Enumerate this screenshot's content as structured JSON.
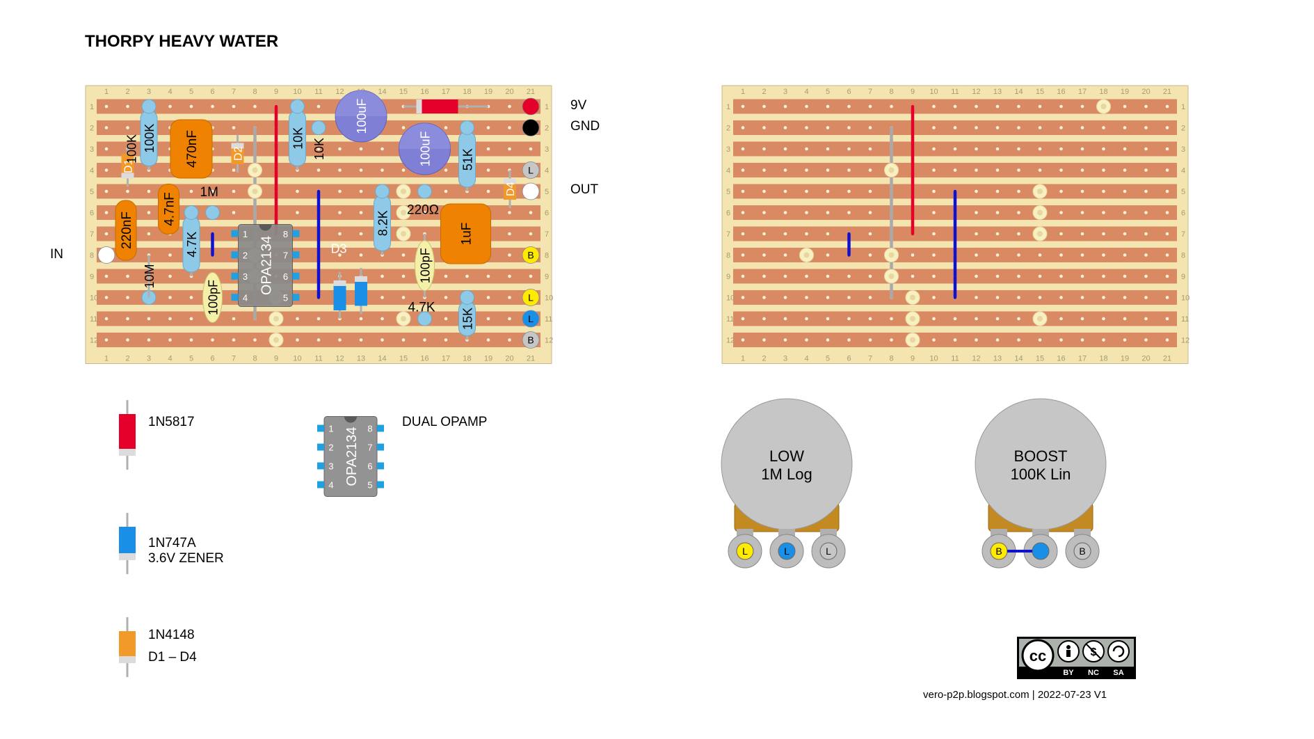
{
  "title": "THORPY HEAVY WATER",
  "colors": {
    "board": "#f4e4b0",
    "strip": "#d98a63",
    "hole": "#f8f3d8",
    "resistor": "#8ec9e8",
    "film_cap": "#ef8200",
    "electrolytic": "#7f7fd6",
    "ceramic": "#f4f0a8",
    "link_red": "#e4002b",
    "link_blue": "#1010d0",
    "link_grey": "#a9a9a9",
    "schottky": "#e4002b",
    "zener": "#1a8fe8",
    "signal_diode": "#f19a2a",
    "opamp": "#8a8a8a",
    "pot_body": "#c6c6c6",
    "pot_base": "#c38a22",
    "lug_yellow": "#ffeb00",
    "lug_blue": "#1a8fe8",
    "lug_grey": "#c6c6c6",
    "cut_marker": "#f8f0c0"
  },
  "board_left": {
    "columns": [
      "1",
      "2",
      "3",
      "4",
      "5",
      "6",
      "7",
      "8",
      "9",
      "10",
      "11",
      "12",
      "13",
      "14",
      "15",
      "16",
      "17",
      "18",
      "19",
      "20",
      "21"
    ],
    "rows": [
      "1",
      "2",
      "3",
      "4",
      "5",
      "6",
      "7",
      "8",
      "9",
      "10",
      "11",
      "12"
    ],
    "wires": [
      {
        "name": "9V",
        "color": "red"
      },
      {
        "name": "GND",
        "color": "black"
      },
      {
        "name": "OUT",
        "color": "white"
      },
      {
        "name": "IN",
        "color": "white"
      }
    ],
    "resistors": [
      "100K",
      "100K",
      "10K",
      "10K",
      "51K",
      "1M",
      "4.7K",
      "10M",
      "8.2K",
      "220Ω",
      "4.7K",
      "15K"
    ],
    "capacitors": [
      "470nF",
      "4.7nF",
      "220nF",
      "100uF",
      "100uF",
      "1uF",
      "100pF",
      "100pF"
    ],
    "diodes": [
      "D1",
      "D2",
      "D3",
      "D4"
    ],
    "ic_label": "OPA2134",
    "ic_pins_left": [
      "1",
      "2",
      "3",
      "4"
    ],
    "ic_pins_right": [
      "8",
      "7",
      "6",
      "5"
    ],
    "pot_lugs": [
      "L",
      "B",
      "L",
      "L",
      "B"
    ]
  },
  "board_right": {
    "columns": [
      "1",
      "2",
      "3",
      "4",
      "5",
      "6",
      "7",
      "8",
      "9",
      "10",
      "11",
      "12",
      "13",
      "14",
      "15",
      "16",
      "17",
      "18",
      "19",
      "20",
      "21"
    ],
    "rows": [
      "1",
      "2",
      "3",
      "4",
      "5",
      "6",
      "7",
      "8",
      "9",
      "10",
      "11",
      "12"
    ]
  },
  "offboard_labels": {
    "v9": "9V",
    "gnd": "GND",
    "out": "OUT",
    "in": "IN"
  },
  "legend": {
    "schottky_name": "1N5817",
    "zener_name": "1N747A",
    "zener_desc": "3.6V ZENER",
    "signal_name": "1N4148",
    "signal_desc": "D1 – D4",
    "opamp_name": "OPA2134",
    "opamp_desc": "DUAL OPAMP",
    "opamp_pins_left": [
      "1",
      "2",
      "3",
      "4"
    ],
    "opamp_pins_right": [
      "8",
      "7",
      "6",
      "5"
    ]
  },
  "pots": [
    {
      "name_line1": "LOW",
      "name_line2": "1M Log",
      "lugs": [
        "L",
        "L",
        "L"
      ],
      "lug_colors": [
        "yellow",
        "blue",
        "grey"
      ]
    },
    {
      "name_line1": "BOOST",
      "name_line2": "100K Lin",
      "lugs": [
        "B",
        "",
        "B"
      ],
      "lug_colors": [
        "yellow",
        "blue",
        "grey"
      ]
    }
  ],
  "license": {
    "badge": "cc",
    "terms": [
      "BY",
      "NC",
      "SA"
    ]
  },
  "footer": "vero-p2p.blogspot.com  |  2022-07-23 V1"
}
